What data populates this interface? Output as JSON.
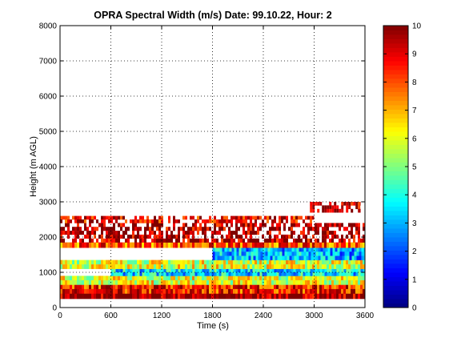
{
  "chart_data": {
    "type": "heatmap",
    "title": "OPRA Spectral Width (m/s)  Date: 99.10.22, Hour: 2",
    "xlabel": "Time (s)",
    "ylabel": "Height (m AGL)",
    "xlim": [
      0,
      3600
    ],
    "ylim": [
      0,
      8000
    ],
    "xticks": [
      0,
      600,
      1200,
      1800,
      2400,
      3000,
      3600
    ],
    "yticks": [
      0,
      1000,
      2000,
      3000,
      4000,
      5000,
      6000,
      7000,
      8000
    ],
    "grid": true,
    "colormap": "jet",
    "colorbar": {
      "min": 0,
      "max": 10,
      "ticks": [
        0,
        1,
        2,
        3,
        4,
        5,
        6,
        7,
        8,
        9,
        10
      ]
    },
    "layers": [
      {
        "height_range": [
          250,
          400
        ],
        "time_range": [
          0,
          3600
        ],
        "spectral_width": 9.8
      },
      {
        "height_range": [
          400,
          650
        ],
        "time_range": [
          0,
          3600
        ],
        "spectral_width": 8.5
      },
      {
        "height_range": [
          650,
          900
        ],
        "time_range": [
          0,
          3600
        ],
        "spectral_width": 6.0
      },
      {
        "height_range": [
          900,
          1100
        ],
        "time_range": [
          600,
          3600
        ],
        "spectral_width": 3.5
      },
      {
        "height_range": [
          1100,
          1350
        ],
        "time_range": [
          0,
          3600
        ],
        "spectral_width": 6.0
      },
      {
        "height_range": [
          1350,
          1700
        ],
        "time_range": [
          1800,
          3600
        ],
        "spectral_width": 3.0
      },
      {
        "height_range": [
          1700,
          1850
        ],
        "time_range": [
          0,
          3600
        ],
        "spectral_width": 8.0
      },
      {
        "height_range": [
          1850,
          2400
        ],
        "time_range": [
          0,
          3600
        ],
        "spectral_width": 9.5
      },
      {
        "height_range": [
          2400,
          2600
        ],
        "time_range": [
          0,
          3000
        ],
        "spectral_width": 9.0
      },
      {
        "height_range": [
          2700,
          3000
        ],
        "time_range": [
          2950,
          3550
        ],
        "spectral_width": 9.5
      }
    ]
  }
}
